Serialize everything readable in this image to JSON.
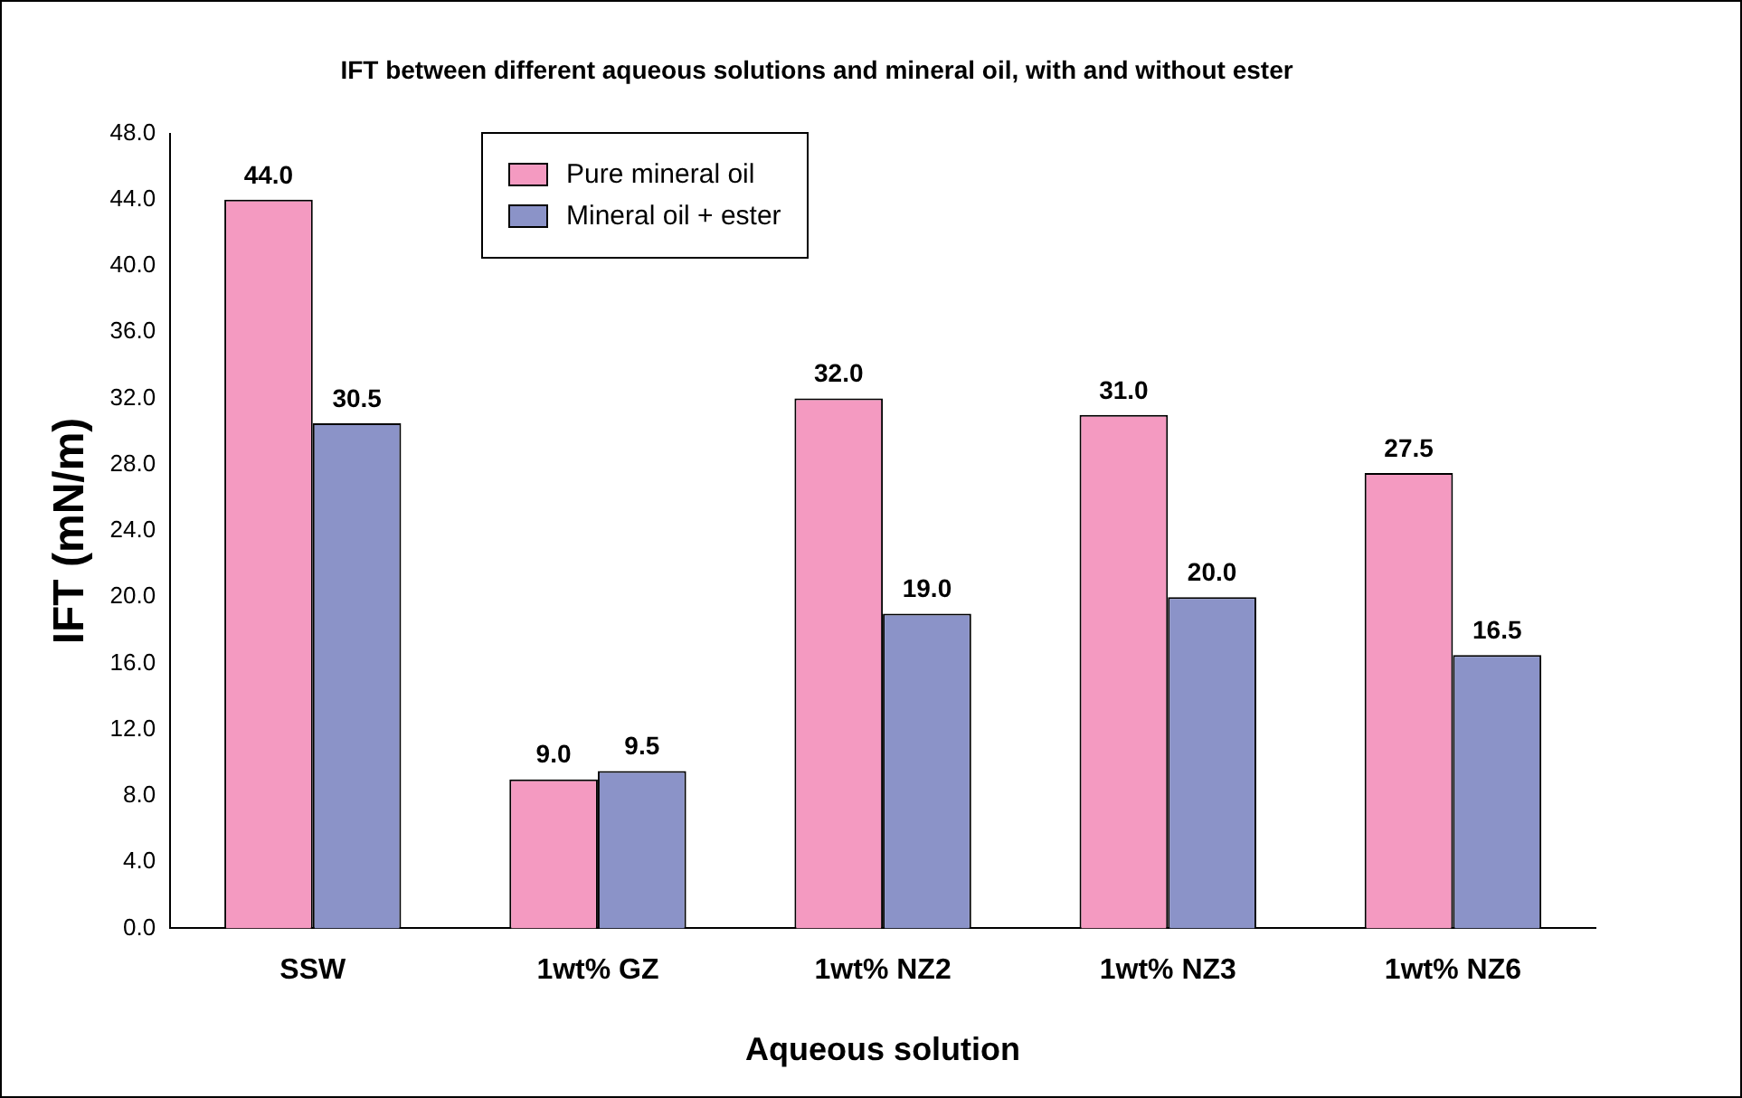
{
  "chart_data": {
    "type": "bar",
    "title": "IFT between different aqueous solutions and mineral oil, with and without ester",
    "xlabel": "Aqueous solution",
    "ylabel": "IFT (mN/m)",
    "categories": [
      "SSW",
      "1wt% GZ",
      "1wt% NZ2",
      "1wt% NZ3",
      "1wt% NZ6"
    ],
    "series": [
      {
        "name": "Pure mineral oil",
        "color": "#f49ac1",
        "values": [
          44.0,
          9.0,
          32.0,
          31.0,
          27.5
        ],
        "value_labels": [
          "44.0",
          "9.0",
          "32.0",
          "31.0",
          "27.5"
        ]
      },
      {
        "name": "Mineral oil + ester",
        "color": "#8b93c8",
        "values": [
          30.5,
          9.5,
          19.0,
          20.0,
          16.5
        ],
        "value_labels": [
          "30.5",
          "9.5",
          "19.0",
          "20.0",
          "16.5"
        ]
      }
    ],
    "ylim": [
      0,
      48
    ],
    "yticks": [
      {
        "value": 0,
        "label": "0.0"
      },
      {
        "value": 4,
        "label": "4.0"
      },
      {
        "value": 8,
        "label": "8.0"
      },
      {
        "value": 12,
        "label": "12.0"
      },
      {
        "value": 16,
        "label": "16.0"
      },
      {
        "value": 20,
        "label": "20.0"
      },
      {
        "value": 24,
        "label": "24.0"
      },
      {
        "value": 28,
        "label": "28.0"
      },
      {
        "value": 32,
        "label": "32.0"
      },
      {
        "value": 36,
        "label": "36.0"
      },
      {
        "value": 40,
        "label": "40.0"
      },
      {
        "value": 44,
        "label": "44.0"
      },
      {
        "value": 48,
        "label": "48.0"
      }
    ],
    "grid": false,
    "legend": "top left"
  }
}
